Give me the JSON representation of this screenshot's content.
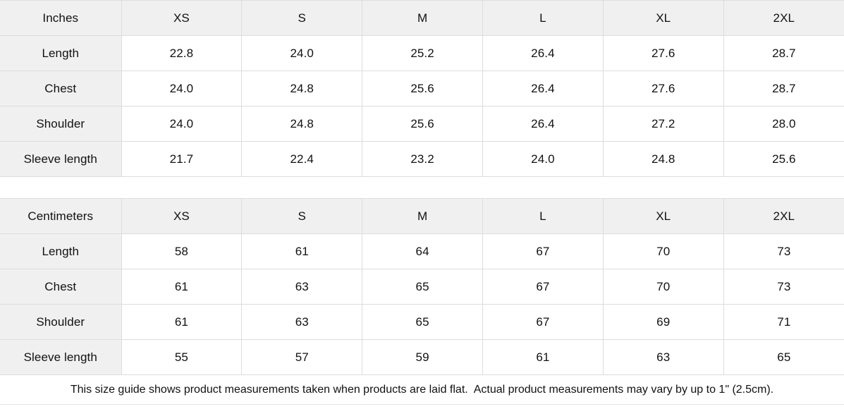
{
  "tables": [
    {
      "unit_label": "Inches",
      "sizes": [
        "XS",
        "S",
        "M",
        "L",
        "XL",
        "2XL"
      ],
      "rows": [
        {
          "label": "Length",
          "values": [
            "22.8",
            "24.0",
            "25.2",
            "26.4",
            "27.6",
            "28.7"
          ]
        },
        {
          "label": "Chest",
          "values": [
            "24.0",
            "24.8",
            "25.6",
            "26.4",
            "27.6",
            "28.7"
          ]
        },
        {
          "label": "Shoulder",
          "values": [
            "24.0",
            "24.8",
            "25.6",
            "26.4",
            "27.2",
            "28.0"
          ]
        },
        {
          "label": "Sleeve length",
          "values": [
            "21.7",
            "22.4",
            "23.2",
            "24.0",
            "24.8",
            "25.6"
          ]
        }
      ]
    },
    {
      "unit_label": "Centimeters",
      "sizes": [
        "XS",
        "S",
        "M",
        "L",
        "XL",
        "2XL"
      ],
      "rows": [
        {
          "label": "Length",
          "values": [
            "58",
            "61",
            "64",
            "67",
            "70",
            "73"
          ]
        },
        {
          "label": "Chest",
          "values": [
            "61",
            "63",
            "65",
            "67",
            "70",
            "73"
          ]
        },
        {
          "label": "Shoulder",
          "values": [
            "61",
            "63",
            "65",
            "67",
            "69",
            "71"
          ]
        },
        {
          "label": "Sleeve length",
          "values": [
            "55",
            "57",
            "59",
            "61",
            "63",
            "65"
          ]
        }
      ]
    }
  ],
  "footer": {
    "note": "This size guide shows product measurements taken when products are laid flat.  Actual product measurements may vary by up to 1\" (2.5cm)."
  },
  "colors": {
    "header_bg": "#f0f0f0",
    "border": "#dddddd",
    "text": "#111111"
  }
}
